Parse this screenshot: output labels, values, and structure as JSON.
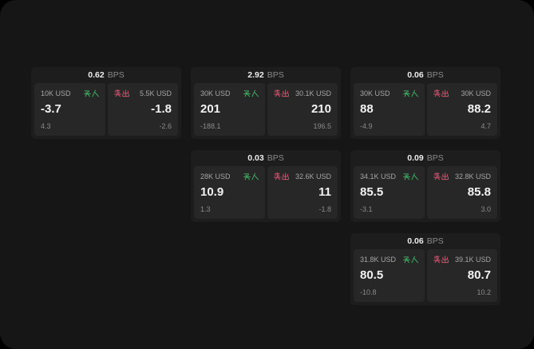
{
  "labels": {
    "bps": "BPS",
    "buy": "买入",
    "sell": "卖出"
  },
  "colors": {
    "buy": "#3fb261",
    "sell": "#d44f6c",
    "window_bg": "#161616",
    "card_bg": "#1d1d1d",
    "panel_bg": "#272727"
  },
  "cards": [
    {
      "bps": "0.62",
      "col": 1,
      "row": 1,
      "buy": {
        "amount": "10K USD",
        "value": "-3.7",
        "sub": "4.3"
      },
      "sell": {
        "amount": "5.5K USD",
        "value": "-1.8",
        "sub": "-2.6"
      }
    },
    {
      "bps": "2.92",
      "col": 2,
      "row": 1,
      "buy": {
        "amount": "30K USD",
        "value": "201",
        "sub": "-188.1"
      },
      "sell": {
        "amount": "30.1K USD",
        "value": "210",
        "sub": "196.5"
      }
    },
    {
      "bps": "0.06",
      "col": 3,
      "row": 1,
      "buy": {
        "amount": "30K USD",
        "value": "88",
        "sub": "-4.9"
      },
      "sell": {
        "amount": "30K USD",
        "value": "88.2",
        "sub": "4.7"
      }
    },
    {
      "bps": "0.03",
      "col": 2,
      "row": 2,
      "buy": {
        "amount": "28K USD",
        "value": "10.9",
        "sub": "1.3"
      },
      "sell": {
        "amount": "32.6K USD",
        "value": "11",
        "sub": "-1.8"
      }
    },
    {
      "bps": "0.09",
      "col": 3,
      "row": 2,
      "buy": {
        "amount": "34.1K USD",
        "value": "85.5",
        "sub": "-3.1"
      },
      "sell": {
        "amount": "32.8K USD",
        "value": "85.8",
        "sub": "3.0"
      }
    },
    {
      "bps": "0.06",
      "col": 3,
      "row": 3,
      "buy": {
        "amount": "31.8K USD",
        "value": "80.5",
        "sub": "-10.8"
      },
      "sell": {
        "amount": "39.1K USD",
        "value": "80.7",
        "sub": "10.2"
      }
    }
  ]
}
